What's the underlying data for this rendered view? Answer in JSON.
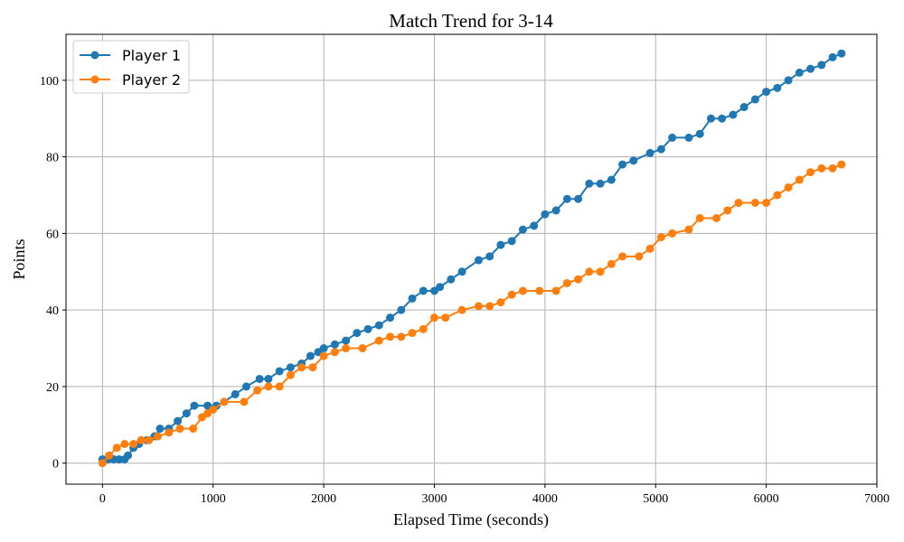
{
  "chart_data": {
    "type": "line",
    "title": "Match Trend for 3-14",
    "xlabel": "Elapsed Time (seconds)",
    "ylabel": "Points",
    "xlim": [
      -330,
      7000
    ],
    "ylim": [
      -5.5,
      112
    ],
    "xticks": [
      0,
      1000,
      2000,
      3000,
      4000,
      5000,
      6000,
      7000
    ],
    "yticks": [
      0,
      20,
      40,
      60,
      80,
      100
    ],
    "grid": true,
    "legend": "top-left",
    "series": [
      {
        "name": "Player 1",
        "color": "#1f77b4",
        "marker": "circle",
        "keypoints": [
          [
            0,
            1
          ],
          [
            50,
            1
          ],
          [
            100,
            1
          ],
          [
            150,
            1
          ],
          [
            200,
            1
          ],
          [
            230,
            2
          ],
          [
            280,
            4
          ],
          [
            330,
            5
          ],
          [
            400,
            6
          ],
          [
            470,
            7
          ],
          [
            520,
            9
          ],
          [
            600,
            9
          ],
          [
            680,
            11
          ],
          [
            760,
            13
          ],
          [
            830,
            15
          ],
          [
            950,
            15
          ],
          [
            1030,
            15
          ],
          [
            1100,
            16
          ],
          [
            1200,
            18
          ],
          [
            1300,
            20
          ],
          [
            1420,
            22
          ],
          [
            1500,
            22
          ],
          [
            1600,
            24
          ],
          [
            1700,
            25
          ],
          [
            1800,
            26
          ],
          [
            1880,
            28
          ],
          [
            1950,
            29
          ],
          [
            2000,
            30
          ],
          [
            2100,
            31
          ],
          [
            2200,
            32
          ],
          [
            2300,
            34
          ],
          [
            2400,
            35
          ],
          [
            2500,
            36
          ],
          [
            2600,
            38
          ],
          [
            2700,
            40
          ],
          [
            2800,
            43
          ],
          [
            2900,
            45
          ],
          [
            3000,
            45
          ],
          [
            3050,
            46
          ],
          [
            3150,
            48
          ],
          [
            3250,
            50
          ],
          [
            3400,
            53
          ],
          [
            3500,
            54
          ],
          [
            3600,
            57
          ],
          [
            3700,
            58
          ],
          [
            3800,
            61
          ],
          [
            3900,
            62
          ],
          [
            4000,
            65
          ],
          [
            4100,
            66
          ],
          [
            4200,
            69
          ],
          [
            4300,
            69
          ],
          [
            4400,
            73
          ],
          [
            4500,
            73
          ],
          [
            4600,
            74
          ],
          [
            4700,
            78
          ],
          [
            4800,
            79
          ],
          [
            4950,
            81
          ],
          [
            5050,
            82
          ],
          [
            5150,
            85
          ],
          [
            5300,
            85
          ],
          [
            5400,
            86
          ],
          [
            5500,
            90
          ],
          [
            5600,
            90
          ],
          [
            5700,
            91
          ],
          [
            5800,
            93
          ],
          [
            5900,
            95
          ],
          [
            6000,
            97
          ],
          [
            6100,
            98
          ],
          [
            6200,
            100
          ],
          [
            6300,
            102
          ],
          [
            6400,
            103
          ],
          [
            6500,
            104
          ],
          [
            6600,
            106
          ],
          [
            6680,
            107
          ]
        ]
      },
      {
        "name": "Player 2",
        "color": "#ff7f0e",
        "marker": "circle",
        "keypoints": [
          [
            0,
            0
          ],
          [
            60,
            2
          ],
          [
            130,
            4
          ],
          [
            200,
            5
          ],
          [
            280,
            5
          ],
          [
            350,
            6
          ],
          [
            420,
            6
          ],
          [
            500,
            7
          ],
          [
            600,
            8
          ],
          [
            700,
            9
          ],
          [
            820,
            9
          ],
          [
            900,
            12
          ],
          [
            950,
            13
          ],
          [
            1000,
            14
          ],
          [
            1100,
            16
          ],
          [
            1280,
            16
          ],
          [
            1400,
            19
          ],
          [
            1500,
            20
          ],
          [
            1600,
            20
          ],
          [
            1700,
            23
          ],
          [
            1800,
            25
          ],
          [
            1900,
            25
          ],
          [
            2000,
            28
          ],
          [
            2100,
            29
          ],
          [
            2200,
            30
          ],
          [
            2350,
            30
          ],
          [
            2500,
            32
          ],
          [
            2600,
            33
          ],
          [
            2700,
            33
          ],
          [
            2800,
            34
          ],
          [
            2900,
            35
          ],
          [
            3000,
            38
          ],
          [
            3100,
            38
          ],
          [
            3250,
            40
          ],
          [
            3400,
            41
          ],
          [
            3500,
            41
          ],
          [
            3600,
            42
          ],
          [
            3700,
            44
          ],
          [
            3800,
            45
          ],
          [
            3950,
            45
          ],
          [
            4100,
            45
          ],
          [
            4200,
            47
          ],
          [
            4300,
            48
          ],
          [
            4400,
            50
          ],
          [
            4500,
            50
          ],
          [
            4600,
            52
          ],
          [
            4700,
            54
          ],
          [
            4850,
            54
          ],
          [
            4950,
            56
          ],
          [
            5050,
            59
          ],
          [
            5150,
            60
          ],
          [
            5300,
            61
          ],
          [
            5400,
            64
          ],
          [
            5550,
            64
          ],
          [
            5650,
            66
          ],
          [
            5750,
            68
          ],
          [
            5900,
            68
          ],
          [
            6000,
            68
          ],
          [
            6100,
            70
          ],
          [
            6200,
            72
          ],
          [
            6300,
            74
          ],
          [
            6400,
            76
          ],
          [
            6500,
            77
          ],
          [
            6600,
            77
          ],
          [
            6680,
            78
          ]
        ]
      }
    ]
  }
}
